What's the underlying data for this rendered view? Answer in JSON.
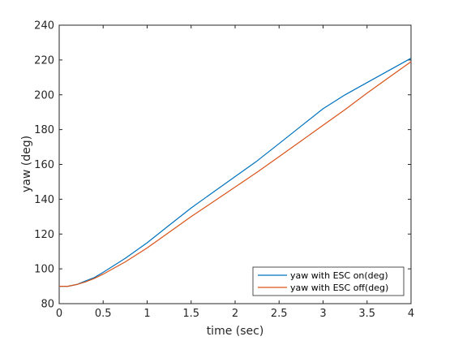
{
  "chart_data": {
    "type": "line",
    "title": "",
    "xlabel": "time (sec)",
    "ylabel": "yaw (deg)",
    "xlim": [
      0,
      4
    ],
    "ylim": [
      80,
      240
    ],
    "x_ticks": [
      0,
      0.5,
      1,
      1.5,
      2,
      2.5,
      3,
      3.5,
      4
    ],
    "x_tick_labels": [
      "0",
      "0.5",
      "1",
      "1.5",
      "2",
      "2.5",
      "3",
      "3.5",
      "4"
    ],
    "y_ticks": [
      80,
      100,
      120,
      140,
      160,
      180,
      200,
      220,
      240
    ],
    "y_tick_labels": [
      "80",
      "100",
      "120",
      "140",
      "160",
      "180",
      "200",
      "220",
      "240"
    ],
    "grid": false,
    "legend_position": "bottom-right",
    "series": [
      {
        "name": "yaw with ESC on(deg)",
        "color": "#0072BD",
        "x": [
          0,
          0.1,
          0.2,
          0.3,
          0.4,
          0.5,
          0.75,
          1,
          1.25,
          1.5,
          1.75,
          2,
          2.25,
          2.5,
          2.75,
          3,
          3.25,
          3.5,
          3.75,
          4
        ],
        "y": [
          90,
          90,
          91,
          93,
          95,
          98,
          106,
          115,
          125,
          135,
          144,
          153,
          162,
          172,
          182,
          192,
          200,
          207,
          214,
          221
        ]
      },
      {
        "name": "yaw with ESC off(deg)",
        "color": "#D95319",
        "x": [
          0,
          0.1,
          0.2,
          0.3,
          0.4,
          0.5,
          0.75,
          1,
          1.25,
          1.5,
          1.75,
          2,
          2.25,
          2.5,
          2.75,
          3,
          3.25,
          3.5,
          3.75,
          4
        ],
        "y": [
          90,
          90,
          91,
          92.5,
          94.5,
          97,
          104,
          112,
          121,
          130,
          138.5,
          147,
          155.5,
          164.5,
          173.5,
          182.5,
          191.5,
          201,
          210,
          219
        ]
      }
    ]
  }
}
